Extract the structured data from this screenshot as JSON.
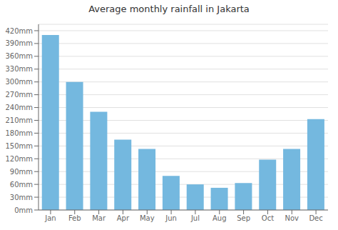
{
  "chart_data": {
    "type": "bar",
    "title": "Average monthly rainfall in Jakarta",
    "categories": [
      "Jan",
      "Feb",
      "Mar",
      "Apr",
      "May",
      "Jun",
      "Jul",
      "Aug",
      "Sep",
      "Oct",
      "Nov",
      "Dec"
    ],
    "values": [
      410,
      300,
      230,
      165,
      143,
      80,
      60,
      52,
      63,
      118,
      143,
      213
    ],
    "color": "#74b8df",
    "ylim": [
      0,
      435
    ],
    "yticks": [
      {
        "value": 0,
        "label": "0mm"
      },
      {
        "value": 30,
        "label": "30mm"
      },
      {
        "value": 60,
        "label": "60mm"
      },
      {
        "value": 90,
        "label": "90mm"
      },
      {
        "value": 120,
        "label": "120mm"
      },
      {
        "value": 150,
        "label": "150mm"
      },
      {
        "value": 180,
        "label": "180mm"
      },
      {
        "value": 210,
        "label": "210mm"
      },
      {
        "value": 240,
        "label": "240mm"
      },
      {
        "value": 270,
        "label": "270mm"
      },
      {
        "value": 300,
        "label": "300mm"
      },
      {
        "value": 330,
        "label": "330mm"
      },
      {
        "value": 360,
        "label": "360mm"
      },
      {
        "value": 390,
        "label": "390mm"
      },
      {
        "value": 420,
        "label": "420mm"
      }
    ],
    "grid": true
  }
}
